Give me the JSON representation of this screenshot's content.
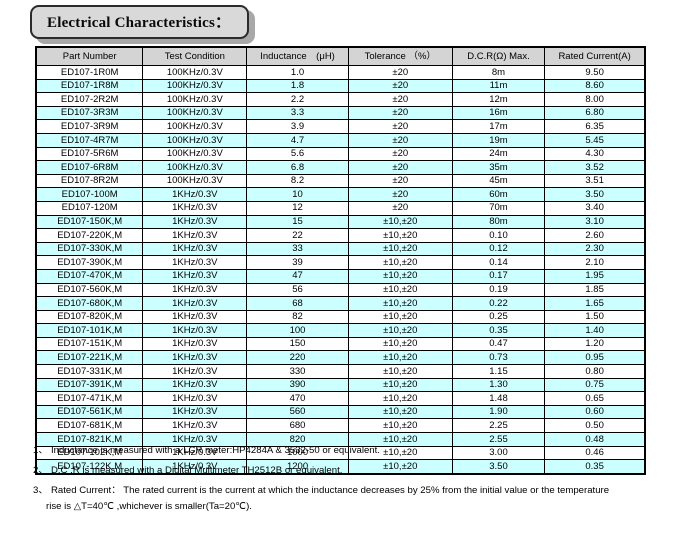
{
  "title": "Electrical Characteristics：",
  "colors": {
    "header_bg": "#d4d4d4",
    "stripe": "#ccffff",
    "title_bg": "#d9d9d9",
    "title_shadow": "#a8a8a8"
  },
  "table": {
    "headers": [
      "Part Number",
      "Test Condition",
      "Inductance　(μH)",
      "Tolerance （%）",
      "D.C.R(Ω) Max.",
      "Rated Current(A)"
    ],
    "rows": [
      [
        "ED107-1R0M",
        "100KHz/0.3V",
        "1.0",
        "±20",
        "8m",
        "9.50"
      ],
      [
        "ED107-1R8M",
        "100KHz/0.3V",
        "1.8",
        "±20",
        "11m",
        "8.60"
      ],
      [
        "ED107-2R2M",
        "100KHz/0.3V",
        "2.2",
        "±20",
        "12m",
        "8.00"
      ],
      [
        "ED107-3R3M",
        "100KHz/0.3V",
        "3.3",
        "±20",
        "16m",
        "6.80"
      ],
      [
        "ED107-3R9M",
        "100KHz/0.3V",
        "3.9",
        "±20",
        "17m",
        "6.35"
      ],
      [
        "ED107-4R7M",
        "100KHz/0.3V",
        "4.7",
        "±20",
        "19m",
        "5.45"
      ],
      [
        "ED107-5R6M",
        "100KHz/0.3V",
        "5.6",
        "±20",
        "24m",
        "4.30"
      ],
      [
        "ED107-6R8M",
        "100KHz/0.3V",
        "6.8",
        "±20",
        "35m",
        "3.52"
      ],
      [
        "ED107-8R2M",
        "100KHz/0.3V",
        "8.2",
        "±20",
        "45m",
        "3.51"
      ],
      [
        "ED107-100M",
        "1KHz/0.3V",
        "10",
        "±20",
        "60m",
        "3.50"
      ],
      [
        "ED107-120M",
        "1KHz/0.3V",
        "12",
        "±20",
        "70m",
        "3.40"
      ],
      [
        "ED107-150K,M",
        "1KHz/0.3V",
        "15",
        "±10,±20",
        "80m",
        "3.10"
      ],
      [
        "ED107-220K,M",
        "1KHz/0.3V",
        "22",
        "±10,±20",
        "0.10",
        "2.60"
      ],
      [
        "ED107-330K,M",
        "1KHz/0.3V",
        "33",
        "±10,±20",
        "0.12",
        "2.30"
      ],
      [
        "ED107-390K,M",
        "1KHz/0.3V",
        "39",
        "±10,±20",
        "0.14",
        "2.10"
      ],
      [
        "ED107-470K,M",
        "1KHz/0.3V",
        "47",
        "±10,±20",
        "0.17",
        "1.95"
      ],
      [
        "ED107-560K,M",
        "1KHz/0.3V",
        "56",
        "±10,±20",
        "0.19",
        "1.85"
      ],
      [
        "ED107-680K,M",
        "1KHz/0.3V",
        "68",
        "±10,±20",
        "0.22",
        "1.65"
      ],
      [
        "ED107-820K,M",
        "1KHz/0.3V",
        "82",
        "±10,±20",
        "0.25",
        "1.50"
      ],
      [
        "ED107-101K,M",
        "1KHz/0.3V",
        "100",
        "±10,±20",
        "0.35",
        "1.40"
      ],
      [
        "ED107-151K,M",
        "1KHz/0.3V",
        "150",
        "±10,±20",
        "0.47",
        "1.20"
      ],
      [
        "ED107-221K,M",
        "1KHz/0.3V",
        "220",
        "±10,±20",
        "0.73",
        "0.95"
      ],
      [
        "ED107-331K,M",
        "1KHz/0.3V",
        "330",
        "±10,±20",
        "1.15",
        "0.80"
      ],
      [
        "ED107-391K,M",
        "1KHz/0.3V",
        "390",
        "±10,±20",
        "1.30",
        "0.75"
      ],
      [
        "ED107-471K,M",
        "1KHz/0.3V",
        "470",
        "±10,±20",
        "1.48",
        "0.65"
      ],
      [
        "ED107-561K,M",
        "1KHz/0.3V",
        "560",
        "±10,±20",
        "1.90",
        "0.60"
      ],
      [
        "ED107-681K,M",
        "1KHz/0.3V",
        "680",
        "±10,±20",
        "2.25",
        "0.50"
      ],
      [
        "ED107-821K,M",
        "1KHz/0.3V",
        "820",
        "±10,±20",
        "2.55",
        "0.48"
      ],
      [
        "ED107-102K,M",
        "1KHz/0.3V",
        "1000",
        "±10,±20",
        "3.00",
        "0.46"
      ],
      [
        "ED107-122K,M",
        "1KHz/0.3V",
        "1200",
        "±10,±20",
        "3.50",
        "0.35"
      ]
    ]
  },
  "notes": [
    {
      "number": "1、",
      "text": "Inductance is measured with a LCR meter:HP4284A & 3532-50 or equivalent."
    },
    {
      "number": "2、",
      "text": "D.C .R is measured with a Digital Multimeter TH2512B or equivalent."
    },
    {
      "number": "3、",
      "text": "Rated Current： The rated current is the current at which the inductance decreases by 25% from the initial value or the temperature",
      "continuation": "rise is △T=40℃ ,whichever is smaller(Ta=20℃)."
    }
  ]
}
